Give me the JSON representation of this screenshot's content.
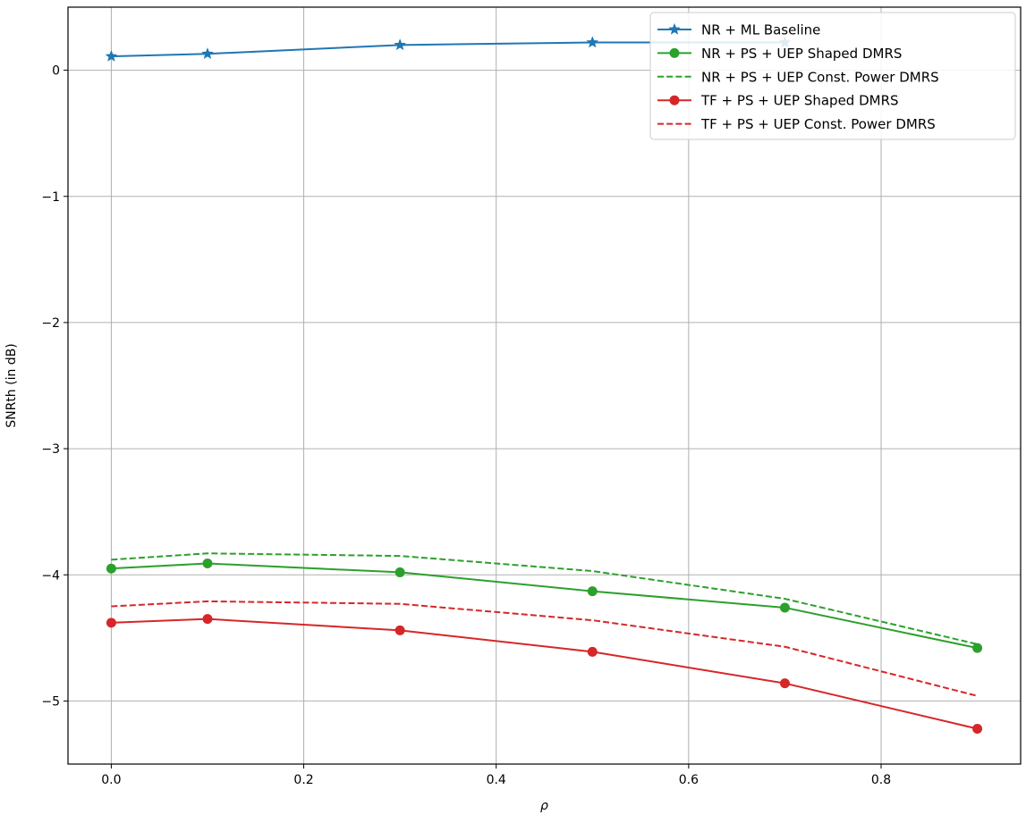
{
  "chart_data": {
    "type": "line",
    "title": "",
    "xlabel": "ρ",
    "ylabel": "SNRth (in dB)",
    "xlim": [
      -0.045,
      0.945
    ],
    "ylim": [
      -5.5,
      0.5
    ],
    "xticks": [
      0.0,
      0.2,
      0.4,
      0.6,
      0.8
    ],
    "xtick_labels": [
      "0.0",
      "0.2",
      "0.4",
      "0.6",
      "0.8"
    ],
    "yticks": [
      0,
      -1,
      -2,
      -3,
      -4,
      -5
    ],
    "ytick_labels": [
      "0",
      "−1",
      "−2",
      "−3",
      "−4",
      "−5"
    ],
    "grid": true,
    "legend_position": "top-right",
    "series": [
      {
        "name": "NR + ML Baseline",
        "color": "#1f77b4",
        "linestyle": "solid",
        "marker": "star",
        "x": [
          0.0,
          0.1,
          0.3,
          0.5,
          0.7
        ],
        "y": [
          0.11,
          0.13,
          0.2,
          0.22,
          0.22
        ]
      },
      {
        "name": "NR + PS + UEP Shaped DMRS",
        "color": "#2ca02c",
        "linestyle": "solid",
        "marker": "circle",
        "x": [
          0.0,
          0.1,
          0.3,
          0.5,
          0.7,
          0.9
        ],
        "y": [
          -3.95,
          -3.91,
          -3.98,
          -4.13,
          -4.26,
          -4.58
        ]
      },
      {
        "name": "NR + PS + UEP Const. Power DMRS",
        "color": "#2ca02c",
        "linestyle": "dashed",
        "marker": "none",
        "x": [
          0.0,
          0.1,
          0.3,
          0.5,
          0.7,
          0.9
        ],
        "y": [
          -3.88,
          -3.83,
          -3.85,
          -3.97,
          -4.19,
          -4.55
        ]
      },
      {
        "name": "TF + PS + UEP Shaped DMRS",
        "color": "#d62728",
        "linestyle": "solid",
        "marker": "circle",
        "x": [
          0.0,
          0.1,
          0.3,
          0.5,
          0.7,
          0.9
        ],
        "y": [
          -4.38,
          -4.35,
          -4.44,
          -4.61,
          -4.86,
          -5.22
        ]
      },
      {
        "name": "TF + PS + UEP Const. Power DMRS",
        "color": "#d62728",
        "linestyle": "dashed",
        "marker": "none",
        "x": [
          0.0,
          0.1,
          0.3,
          0.5,
          0.7,
          0.9
        ],
        "y": [
          -4.25,
          -4.21,
          -4.23,
          -4.36,
          -4.57,
          -4.96
        ]
      }
    ]
  }
}
